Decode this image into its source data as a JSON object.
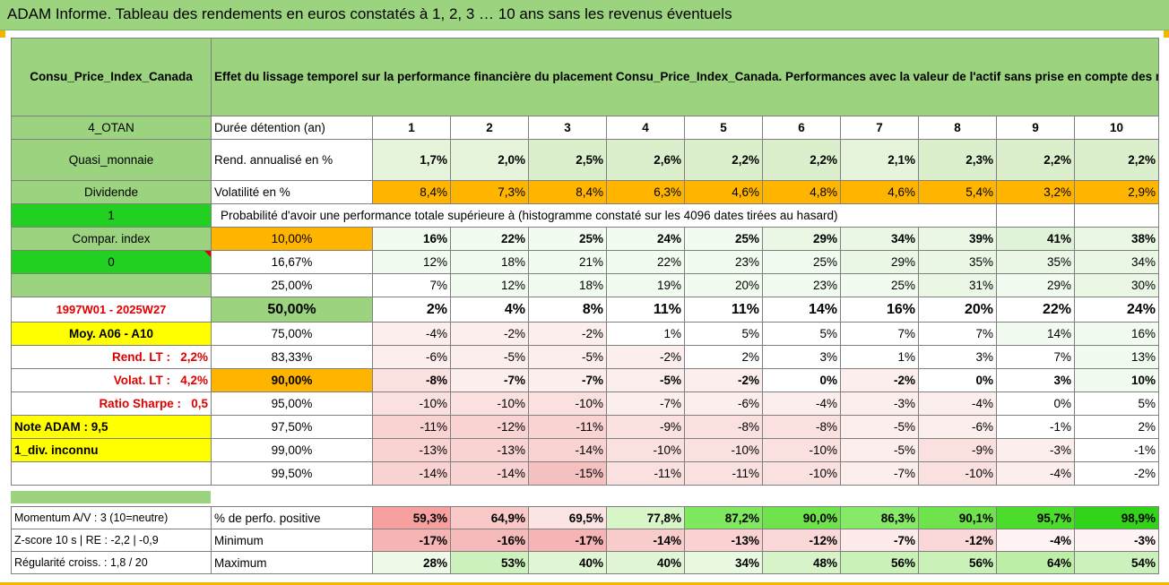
{
  "title": "ADAM Informe. Tableau des rendements en euros constatés à 1, 2, 3 … 10 ans sans les revenus éventuels",
  "header": {
    "asset": "Consu_Price_Index_Canada",
    "description": "Effet du lissage temporel sur la performance financière du placement Consu_Price_Index_Canada. Performances avec la valeur de l'actif sans prise en compte des revenus."
  },
  "left": {
    "otan": "4_OTAN",
    "quasi": "Quasi_monnaie",
    "dividende": "Dividende",
    "one": "1",
    "compar": "Compar. index",
    "zero": "0",
    "period": "1997W01 - 2025W27",
    "moy": "Moy. A06 - A10",
    "rend_lt_label": "Rend. LT :",
    "rend_lt": "2,2%",
    "volat_lt_label": "Volat. LT :",
    "volat_lt": "4,2%",
    "sharpe_label": "Ratio Sharpe :",
    "sharpe": "0,5",
    "note": "Note ADAM : 9,5",
    "div": "1_div. inconnu"
  },
  "duree_label": "Durée détention (an)",
  "years": [
    "1",
    "2",
    "3",
    "4",
    "5",
    "6",
    "7",
    "8",
    "9",
    "10"
  ],
  "rend_label": "Rend. annualisé en %",
  "rend": [
    "1,7%",
    "2,0%",
    "2,5%",
    "2,6%",
    "2,2%",
    "2,2%",
    "2,1%",
    "2,3%",
    "2,2%",
    "2,2%"
  ],
  "vol_label": "Volatilité en %",
  "vol": [
    "8,4%",
    "7,3%",
    "8,4%",
    "6,3%",
    "4,6%",
    "4,8%",
    "4,6%",
    "5,4%",
    "3,2%",
    "2,9%"
  ],
  "prob_label": "Probabilité d'avoir une performance totale supérieure à (histogramme constaté sur les 4096 dates tirées au hasard)",
  "quantiles": [
    {
      "q": "10,00%",
      "v": [
        "16%",
        "22%",
        "25%",
        "24%",
        "25%",
        "29%",
        "34%",
        "39%",
        "41%",
        "38%"
      ]
    },
    {
      "q": "16,67%",
      "v": [
        "12%",
        "18%",
        "21%",
        "22%",
        "23%",
        "25%",
        "29%",
        "35%",
        "35%",
        "34%"
      ]
    },
    {
      "q": "25,00%",
      "v": [
        "7%",
        "12%",
        "18%",
        "19%",
        "20%",
        "23%",
        "25%",
        "31%",
        "29%",
        "30%"
      ]
    },
    {
      "q": "50,00%",
      "v": [
        "2%",
        "4%",
        "8%",
        "11%",
        "11%",
        "14%",
        "16%",
        "20%",
        "22%",
        "24%"
      ]
    },
    {
      "q": "75,00%",
      "v": [
        "-4%",
        "-2%",
        "-2%",
        "1%",
        "5%",
        "5%",
        "7%",
        "7%",
        "14%",
        "16%"
      ]
    },
    {
      "q": "83,33%",
      "v": [
        "-6%",
        "-5%",
        "-5%",
        "-2%",
        "2%",
        "3%",
        "1%",
        "3%",
        "7%",
        "13%"
      ]
    },
    {
      "q": "90,00%",
      "v": [
        "-8%",
        "-7%",
        "-7%",
        "-5%",
        "-2%",
        "0%",
        "-2%",
        "0%",
        "3%",
        "10%"
      ]
    },
    {
      "q": "95,00%",
      "v": [
        "-10%",
        "-10%",
        "-10%",
        "-7%",
        "-6%",
        "-4%",
        "-3%",
        "-4%",
        "0%",
        "5%"
      ]
    },
    {
      "q": "97,50%",
      "v": [
        "-11%",
        "-12%",
        "-11%",
        "-9%",
        "-8%",
        "-8%",
        "-5%",
        "-6%",
        "-1%",
        "2%"
      ]
    },
    {
      "q": "99,00%",
      "v": [
        "-13%",
        "-13%",
        "-14%",
        "-10%",
        "-10%",
        "-10%",
        "-5%",
        "-9%",
        "-3%",
        "-1%"
      ]
    },
    {
      "q": "99,50%",
      "v": [
        "-14%",
        "-14%",
        "-15%",
        "-11%",
        "-11%",
        "-10%",
        "-7%",
        "-10%",
        "-4%",
        "-2%"
      ]
    }
  ],
  "bottom": [
    {
      "left": "Momentum A/V : 3 (10=neutre)",
      "label": "% de perfo. positive",
      "v": [
        "59,3%",
        "64,9%",
        "69,5%",
        "77,8%",
        "87,2%",
        "90,0%",
        "86,3%",
        "90,1%",
        "95,7%",
        "98,9%"
      ]
    },
    {
      "left": "Z-score 10 s | RE : -2,2 | -0,9",
      "label": "Minimum",
      "v": [
        "-17%",
        "-16%",
        "-17%",
        "-14%",
        "-13%",
        "-12%",
        "-7%",
        "-12%",
        "-4%",
        "-3%"
      ]
    },
    {
      "left": "Régularité croiss. : 1,8 / 20",
      "label": "Maximum",
      "v": [
        "28%",
        "53%",
        "40%",
        "40%",
        "34%",
        "48%",
        "56%",
        "56%",
        "64%",
        "54%"
      ]
    }
  ],
  "colors": {
    "header_green": "#9bd37f",
    "bright_green": "#21d021",
    "yellow": "#ffff00",
    "orange": "#ffb400",
    "red_text": "#e00000"
  }
}
